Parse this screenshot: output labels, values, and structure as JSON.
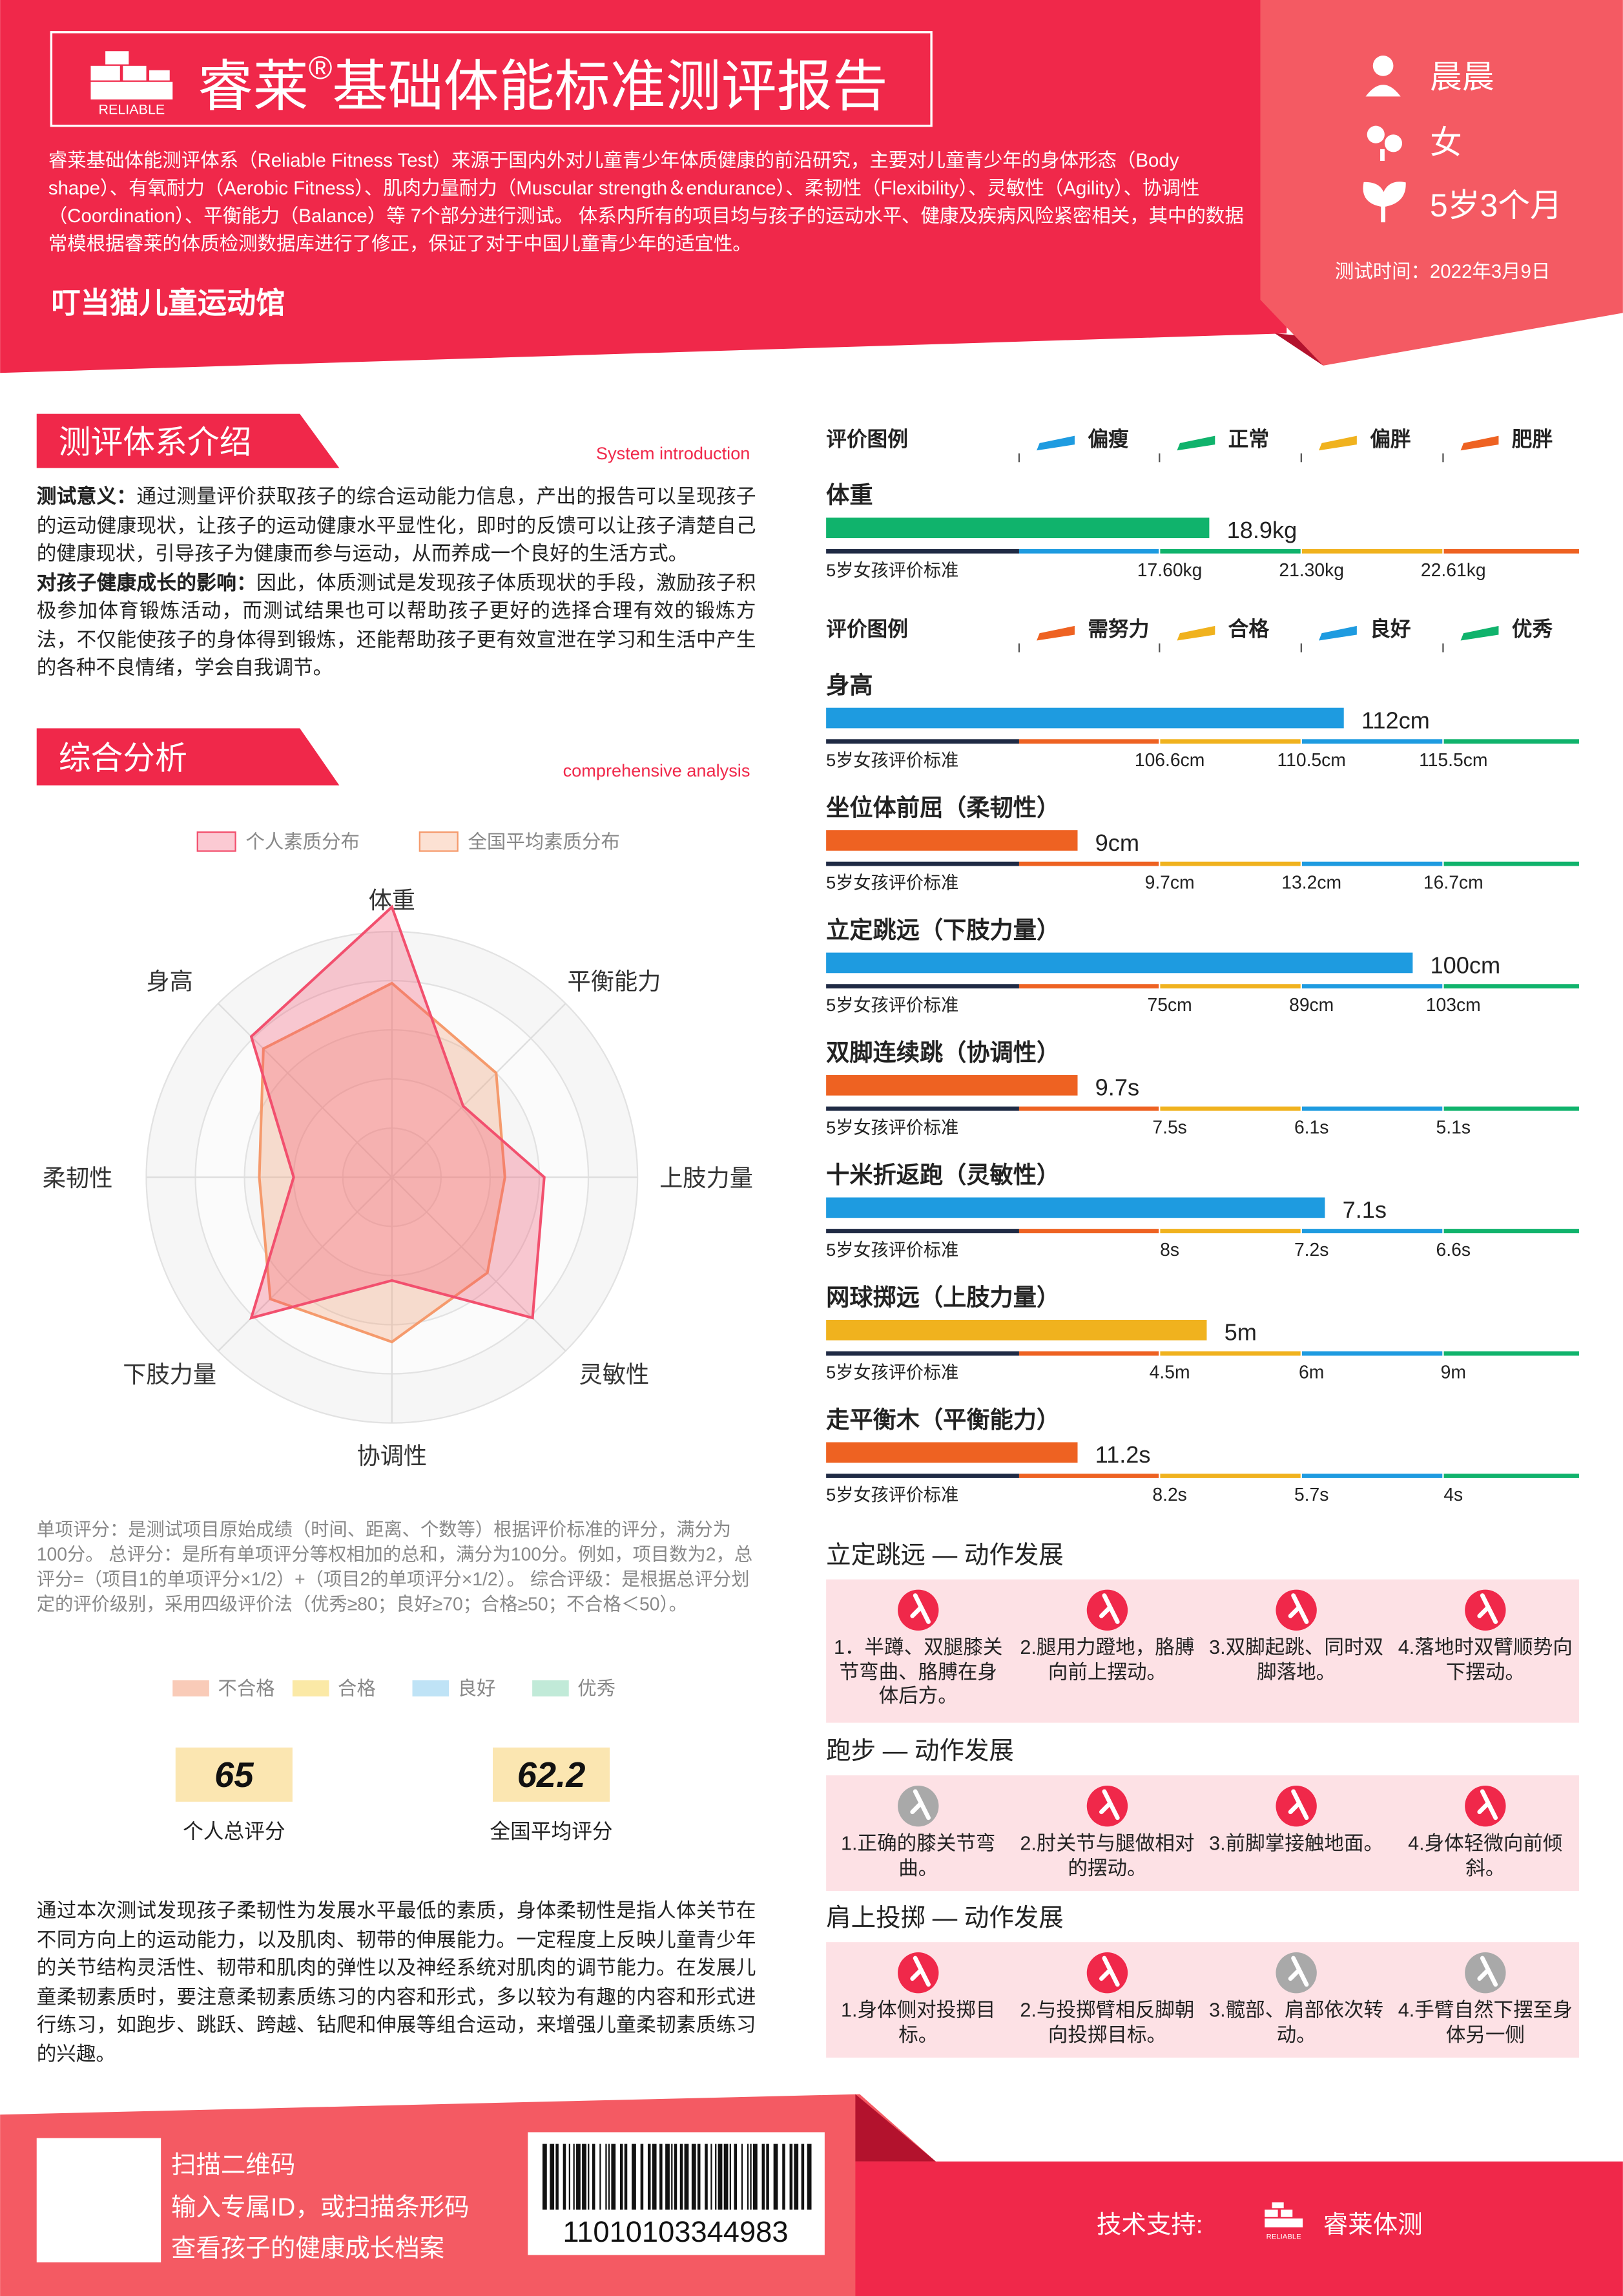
{
  "header": {
    "logo_text": "RELIABLE",
    "title": {
      "brand": "睿莱",
      "mark": "®",
      "name": "基础体能标准测评报告"
    },
    "intro": "睿莱基础体能测评体系（Reliable Fitness Test）来源于国内外对儿童青少年体质健康的前沿研究，主要对儿童青少年的身体形态（Body shape）、有氧耐力（Aerobic Fitness）、肌肉力量耐力（Muscular strength＆endurance）、柔韧性（Flexibility）、灵敏性（Agility）、协调性（Coordination）、平衡能力（Balance）等 7个部分进行测试。 体系内所有的项目均与孩子的运动水平、健康及疾病风险紧密相关，其中的数据常模根据睿莱的体质检测数据库进行了修正，保证了对于中国儿童青少年的适宜性。",
    "venue": "叮当猫儿童运动馆",
    "name": "晨晨",
    "gender": "女",
    "age": "5岁3个月",
    "test_date": "测试时间：2022年3月9日"
  },
  "intro_section": {
    "title": "测评体系介绍",
    "subtitle": "System introduction",
    "paragraphs": [
      {
        "label": "测试意义：",
        "text": "通过测量评价获取孩子的综合运动能力信息，产出的报告可以呈现孩子的运动健康现状，让孩子的运动健康水平显性化，即时的反馈可以让孩子清楚自己的健康现状，引导孩子为健康而参与运动，从而养成一个良好的生活方式。"
      },
      {
        "label": "对孩子健康成长的影响：",
        "text": "因此，体质测试是发现孩子体质现状的手段，激励孩子积极参加体育锻炼活动，而测试结果也可以帮助孩子更好的选择合理有效的锻炼方法，不仅能使孩子的身体得到锻炼，还能帮助孩子更有效宣泄在学习和生活中产生的各种不良情绪，学会自我调节。"
      }
    ]
  },
  "analysis": {
    "title": "综合分析",
    "subtitle": "comprehensive analysis",
    "radar": {
      "axes": [
        "体重",
        "平衡能力",
        "上肢力量",
        "灵敏性",
        "协调性",
        "下肢力量",
        "柔韧性",
        "身高"
      ],
      "rlim": [
        0,
        100
      ],
      "series": [
        {
          "name": "个人素质分布",
          "color": "#f2506e",
          "values": [
            110,
            41,
            62,
            81,
            42,
            81,
            40,
            81
          ]
        },
        {
          "name": "全国平均素质分布",
          "color": "#f59a6c",
          "values": [
            79,
            60,
            46,
            55,
            67,
            70,
            54,
            74
          ]
        }
      ]
    },
    "note": "单项评分：是测试项目原始成绩（时间、距离、个数等）根据评价标准的评分，满分为100分。 总评分：是所有单项评分等权相加的总和，满分为100分。例如，项目数为2，总评分=（项目1的单项评分×1/2）+（项目2的单项评分×1/2）。 综合评级：是根据总评分划定的评价级别，采用四级评价法（优秀≥80；良好≥70；合格≥50；不合格＜50）。",
    "grade_legend": [
      {
        "label": "不合格",
        "color": "#f9cbb8"
      },
      {
        "label": "合格",
        "color": "#fbe9a6"
      },
      {
        "label": "良好",
        "color": "#bfe3f6"
      },
      {
        "label": "优秀",
        "color": "#c1ead8"
      }
    ],
    "scores": [
      {
        "value": 65,
        "label": "个人总评分"
      },
      {
        "value": 62.2,
        "label": "全国平均评分"
      }
    ],
    "conclusion": "通过本次测试发现孩子柔韧性为发展水平最低的素质，身体柔韧性是指人体关节在不同方向上的运动能力，以及肌肉、韧带的伸展能力。一定程度上反映儿童青少年的关节结构灵活性、韧带和肌肉的弹性以及神经系统对肌肉的调节能力。在发展儿童柔韧素质时，要注意柔韧素质练习的内容和形式，多以较为有趣的内容和形式进行练习，如跑步、跳跃、跨越、钻爬和伸展等组合运动，来增强儿童柔韧素质练习的兴趣。"
  },
  "evaluation": {
    "weight_legend": {
      "title": "评价图例",
      "items": [
        {
          "label": "偏瘦",
          "color": "#1e9be0"
        },
        {
          "label": "正常",
          "color": "#10b36c"
        },
        {
          "label": "偏胖",
          "color": "#f0b21e"
        },
        {
          "label": "肥胖",
          "color": "#ee6222"
        }
      ]
    },
    "weight": {
      "name": "体重",
      "value": 18.9,
      "value_label": "18.9kg",
      "color": "#10b36c",
      "standard": "5岁女孩评价标准",
      "thresholds": [
        {
          "value": 17.6,
          "label": "17.60kg"
        },
        {
          "value": 21.3,
          "label": "21.30kg"
        },
        {
          "value": 22.61,
          "label": "22.61kg"
        }
      ]
    },
    "grade_legend": {
      "title": "评价图例",
      "items": [
        {
          "label": "需努力",
          "color": "#ee6222"
        },
        {
          "label": "合格",
          "color": "#f0b21e"
        },
        {
          "label": "良好",
          "color": "#1e9be0"
        },
        {
          "label": "优秀",
          "color": "#10b36c"
        }
      ]
    },
    "items": [
      {
        "name": "身高",
        "value": 112,
        "value_label": "112cm",
        "color": "#1e9be0",
        "standard": "5岁女孩评价标准",
        "thresholds": [
          {
            "value": 106.6,
            "label": "106.6cm"
          },
          {
            "value": 110.5,
            "label": "110.5cm"
          },
          {
            "value": 115.5,
            "label": "115.5cm"
          }
        ]
      },
      {
        "name": "坐位体前屈（柔韧性）",
        "value": 9,
        "value_label": "9cm",
        "color": "#ee6222",
        "standard": "5岁女孩评价标准",
        "thresholds": [
          {
            "value": 9.7,
            "label": "9.7cm"
          },
          {
            "value": 13.2,
            "label": "13.2cm"
          },
          {
            "value": 16.7,
            "label": "16.7cm"
          }
        ]
      },
      {
        "name": "立定跳远（下肢力量）",
        "value": 100,
        "value_label": "100cm",
        "color": "#1e9be0",
        "standard": "5岁女孩评价标准",
        "thresholds": [
          {
            "value": 75,
            "label": "75cm"
          },
          {
            "value": 89,
            "label": "89cm"
          },
          {
            "value": 103,
            "label": "103cm"
          }
        ]
      },
      {
        "name": "双脚连续跳（协调性）",
        "value": 9.7,
        "value_label": "9.7s",
        "color": "#ee6222",
        "standard": "5岁女孩评价标准",
        "thresholds": [
          {
            "value": 7.5,
            "label": "7.5s"
          },
          {
            "value": 6.1,
            "label": "6.1s"
          },
          {
            "value": 5.1,
            "label": "5.1s"
          }
        ]
      },
      {
        "name": "十米折返跑（灵敏性）",
        "value": 7.1,
        "value_label": "7.1s",
        "color": "#1e9be0",
        "standard": "5岁女孩评价标准",
        "thresholds": [
          {
            "value": 8,
            "label": "8s"
          },
          {
            "value": 7.2,
            "label": "7.2s"
          },
          {
            "value": 6.6,
            "label": "6.6s"
          }
        ]
      },
      {
        "name": "网球掷远（上肢力量）",
        "value": 5,
        "value_label": "5m",
        "color": "#f0b21e",
        "standard": "5岁女孩评价标准",
        "thresholds": [
          {
            "value": 4.5,
            "label": "4.5m"
          },
          {
            "value": 6,
            "label": "6m"
          },
          {
            "value": 9,
            "label": "9m"
          }
        ]
      },
      {
        "name": "走平衡木（平衡能力）",
        "value": 11.2,
        "value_label": "11.2s",
        "color": "#ee6222",
        "standard": "5岁女孩评价标准",
        "thresholds": [
          {
            "value": 8.2,
            "label": "8.2s"
          },
          {
            "value": 5.7,
            "label": "5.7s"
          },
          {
            "value": 4,
            "label": "4s"
          }
        ]
      }
    ]
  },
  "motion": [
    {
      "title": "立定跳远 — 动作发展",
      "steps": [
        "1．半蹲、双腿膝关节弯曲、胳膊在身体后方。",
        "2.腿用力蹬地，胳膊向前上摆动。",
        "3.双脚起跳、同时双脚落地。",
        "4.落地时双臂顺势向下摆动。"
      ]
    },
    {
      "title": "跑步 — 动作发展",
      "steps": [
        "1.正确的膝关节弯曲。",
        "2.肘关节与腿做相对的摆动。",
        "3.前脚掌接触地面。",
        "4.身体轻微向前倾斜。"
      ]
    },
    {
      "title": "肩上投掷 — 动作发展",
      "steps": [
        "1.身体侧对投掷目标。",
        "2.与投掷臂相反脚朝向投掷目标。",
        "3.髋部、肩部依次转动。",
        "4.手臂自然下摆至身体另一侧"
      ]
    }
  ],
  "footer": {
    "lines": [
      "扫描二维码",
      "输入专属ID，或扫描条形码",
      "查看孩子的健康成长档案"
    ],
    "barcode": "11010103344983",
    "support_label": "技术支持:",
    "support_logo_text": "RELIABLE",
    "support_name": "睿莱体测"
  }
}
